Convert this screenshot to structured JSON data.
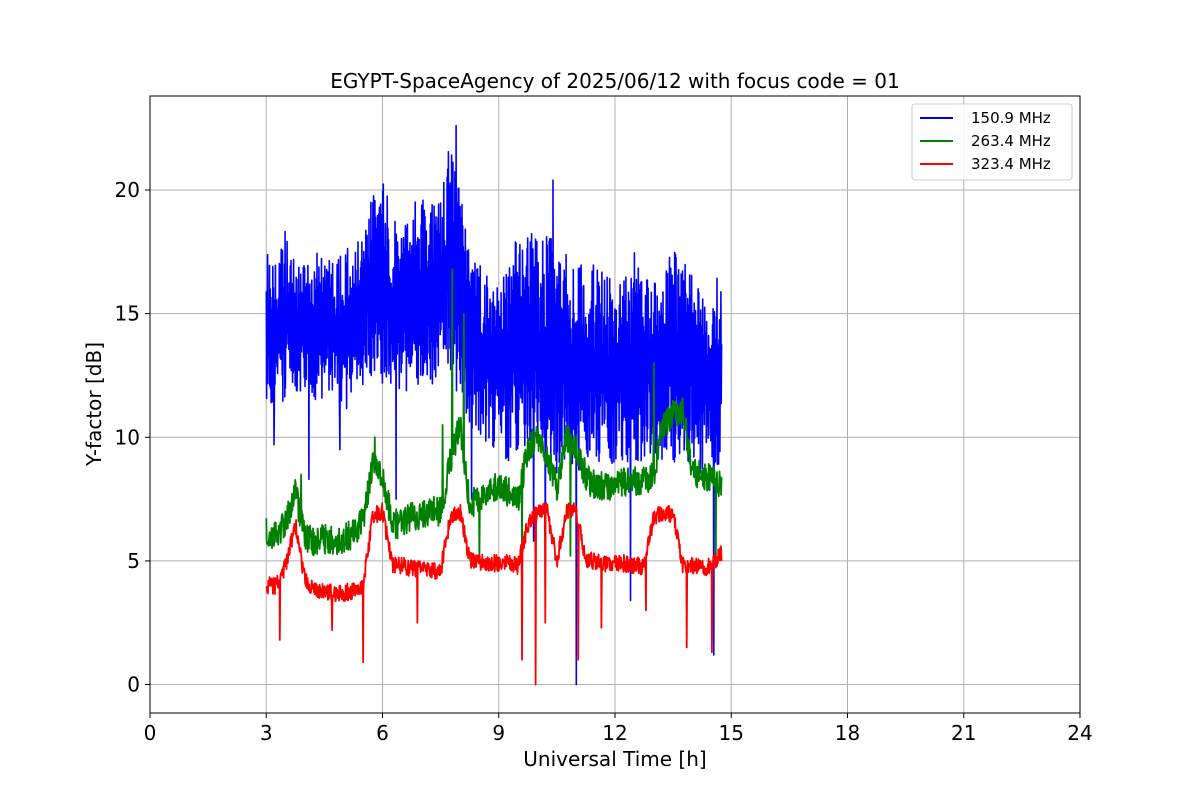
{
  "chart_data": {
    "type": "line",
    "title": "EGYPT-SpaceAgency of 2025/06/12 with focus code = 01",
    "xlabel": "Universal Time [h]",
    "ylabel": "Y-factor [dB]",
    "xlim": [
      0,
      24
    ],
    "ylim": [
      -1.15,
      23.8
    ],
    "x_ticks": [
      0,
      3,
      6,
      9,
      12,
      15,
      18,
      21,
      24
    ],
    "y_ticks": [
      0,
      5,
      10,
      15,
      20
    ],
    "grid": true,
    "legend_position": "top-right",
    "series": [
      {
        "name": "150.9 MHz",
        "color": "#0000ff",
        "x": [
          3.0,
          3.25,
          3.5,
          3.75,
          4.0,
          4.25,
          4.5,
          4.75,
          5.0,
          5.25,
          5.5,
          5.75,
          6.0,
          6.25,
          6.5,
          6.75,
          7.0,
          7.25,
          7.5,
          7.75,
          8.0,
          8.25,
          8.5,
          8.75,
          9.0,
          9.25,
          9.5,
          9.75,
          10.0,
          10.25,
          10.5,
          10.75,
          11.0,
          11.25,
          11.5,
          11.75,
          12.0,
          12.25,
          12.5,
          12.75,
          13.0,
          13.25,
          13.5,
          13.75,
          14.0,
          14.25,
          14.5,
          14.75
        ],
        "band_low": [
          11.5,
          11.0,
          11.5,
          11.5,
          11.0,
          11.5,
          11.5,
          11.5,
          11.0,
          11.5,
          12.0,
          12.5,
          12.0,
          11.5,
          11.5,
          12.0,
          12.0,
          12.0,
          12.5,
          12.5,
          11.5,
          10.5,
          10.0,
          9.5,
          9.5,
          9.0,
          9.0,
          9.5,
          9.0,
          9.0,
          8.5,
          9.0,
          8.5,
          9.0,
          9.0,
          8.5,
          9.0,
          9.0,
          9.0,
          9.0,
          9.0,
          9.0,
          9.0,
          9.0,
          8.5,
          8.5,
          8.5,
          9.0
        ],
        "band_high": [
          17.5,
          17.0,
          18.5,
          17.0,
          17.0,
          17.5,
          17.5,
          17.0,
          17.5,
          18.0,
          18.0,
          20.0,
          20.5,
          19.0,
          18.5,
          19.5,
          20.0,
          19.5,
          20.0,
          22.0,
          20.0,
          17.5,
          17.0,
          16.5,
          16.0,
          17.0,
          18.5,
          18.5,
          18.0,
          18.5,
          17.5,
          17.5,
          17.0,
          17.0,
          17.0,
          16.5,
          16.5,
          16.5,
          17.5,
          16.5,
          16.5,
          17.0,
          17.5,
          17.5,
          16.5,
          16.0,
          16.5,
          16.5
        ],
        "spikes": [
          [
            3.2,
            9.7
          ],
          [
            4.1,
            8.3
          ],
          [
            4.9,
            9.5
          ],
          [
            5.7,
            19.5
          ],
          [
            6.35,
            7.5
          ],
          [
            7.9,
            22.6
          ],
          [
            8.3,
            7.5
          ],
          [
            9.9,
            5.8
          ],
          [
            10.2,
            4.0
          ],
          [
            10.4,
            20.4
          ],
          [
            11.0,
            0.0
          ],
          [
            12.4,
            3.4
          ],
          [
            14.55,
            1.2
          ]
        ]
      },
      {
        "name": "263.4 MHz",
        "color": "#008000",
        "x": [
          3.0,
          3.25,
          3.5,
          3.75,
          4.0,
          4.25,
          4.5,
          4.75,
          5.0,
          5.25,
          5.5,
          5.75,
          6.0,
          6.25,
          6.5,
          6.75,
          7.0,
          7.25,
          7.5,
          7.75,
          8.0,
          8.25,
          8.5,
          8.75,
          9.0,
          9.25,
          9.5,
          9.75,
          10.0,
          10.25,
          10.5,
          10.75,
          11.0,
          11.25,
          11.5,
          11.75,
          12.0,
          12.25,
          12.5,
          12.75,
          13.0,
          13.25,
          13.5,
          13.75,
          14.0,
          14.25,
          14.5,
          14.75
        ],
        "center": [
          6.2,
          6.0,
          6.5,
          7.8,
          6.0,
          5.8,
          5.9,
          5.8,
          5.9,
          6.1,
          6.6,
          8.8,
          8.5,
          6.5,
          6.5,
          6.8,
          6.8,
          7.0,
          7.0,
          9.0,
          10.5,
          7.3,
          7.5,
          7.8,
          8.0,
          7.8,
          7.5,
          9.5,
          10.0,
          9.2,
          8.0,
          10.0,
          9.6,
          8.4,
          8.0,
          8.0,
          8.0,
          8.2,
          8.2,
          8.2,
          8.5,
          10.5,
          11.0,
          11.0,
          8.5,
          8.5,
          8.3,
          8.0
        ],
        "noise": 0.6,
        "spikes": [
          [
            3.9,
            8.5
          ],
          [
            5.8,
            10.0
          ],
          [
            7.55,
            10.5
          ],
          [
            7.8,
            16.8
          ],
          [
            8.1,
            15.0
          ],
          [
            8.5,
            5.0
          ],
          [
            9.6,
            5.5
          ],
          [
            10.85,
            5.2
          ],
          [
            13.0,
            13.0
          ],
          [
            14.6,
            5.0
          ]
        ]
      },
      {
        "name": "323.4 MHz",
        "color": "#ff0000",
        "x": [
          3.0,
          3.25,
          3.5,
          3.75,
          4.0,
          4.25,
          4.5,
          4.75,
          5.0,
          5.25,
          5.5,
          5.75,
          6.0,
          6.25,
          6.5,
          6.75,
          7.0,
          7.25,
          7.5,
          7.75,
          8.0,
          8.25,
          8.5,
          8.75,
          9.0,
          9.25,
          9.5,
          9.75,
          10.0,
          10.25,
          10.5,
          10.75,
          11.0,
          11.25,
          11.5,
          11.75,
          12.0,
          12.25,
          12.5,
          12.75,
          13.0,
          13.25,
          13.5,
          13.75,
          14.0,
          14.25,
          14.5,
          14.75
        ],
        "center": [
          4.0,
          4.0,
          4.8,
          6.5,
          4.2,
          3.8,
          3.8,
          3.7,
          3.7,
          3.8,
          4.0,
          6.8,
          7.0,
          4.8,
          4.8,
          4.7,
          4.7,
          4.6,
          4.6,
          6.8,
          7.0,
          5.0,
          5.0,
          4.9,
          4.9,
          4.9,
          4.8,
          6.5,
          7.0,
          7.0,
          5.0,
          7.0,
          7.0,
          5.0,
          5.0,
          4.9,
          4.9,
          4.9,
          4.8,
          4.8,
          6.8,
          7.0,
          6.8,
          4.8,
          4.8,
          4.7,
          4.8,
          5.3
        ],
        "noise": 0.35,
        "spikes": [
          [
            3.35,
            1.8
          ],
          [
            4.7,
            2.2
          ],
          [
            5.5,
            0.9
          ],
          [
            6.9,
            2.5
          ],
          [
            9.6,
            1.0
          ],
          [
            9.95,
            0.0
          ],
          [
            10.2,
            2.5
          ],
          [
            11.05,
            1.0
          ],
          [
            11.65,
            2.3
          ],
          [
            12.8,
            3.0
          ],
          [
            13.85,
            1.5
          ],
          [
            14.5,
            1.3
          ]
        ]
      }
    ]
  }
}
